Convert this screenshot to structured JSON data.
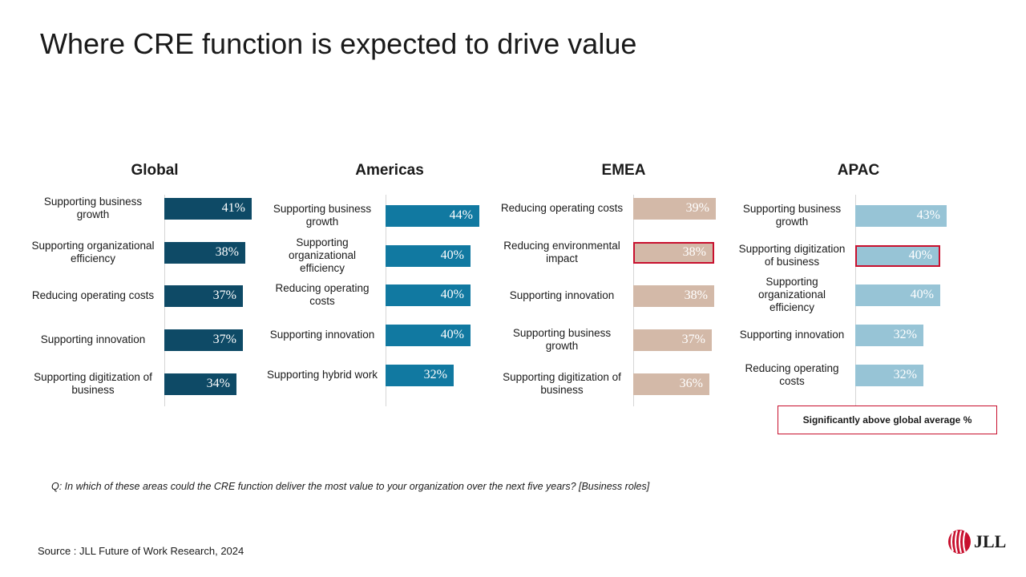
{
  "title": "Where CRE function is expected to drive value",
  "colors": {
    "global": "#0e4a66",
    "americas": "#1179a1",
    "emea": "#d3b9a8",
    "apac": "#97c4d6",
    "highlight": "#c8102e"
  },
  "chart_data": [
    {
      "type": "bar",
      "orientation": "horizontal",
      "title": "Global",
      "categories": [
        "Supporting business growth",
        "Supporting organizational efficiency",
        "Reducing operating costs",
        "Supporting innovation",
        "Supporting digitization of business"
      ],
      "values": [
        41,
        38,
        37,
        37,
        34
      ],
      "labels": [
        "41%",
        "38%",
        "37%",
        "37%",
        "34%"
      ],
      "highlighted": [
        false,
        false,
        false,
        false,
        false
      ]
    },
    {
      "type": "bar",
      "orientation": "horizontal",
      "title": "Americas",
      "categories": [
        "Supporting business growth",
        "Supporting organizational efficiency",
        "Reducing operating costs",
        "Supporting innovation",
        "Supporting hybrid work"
      ],
      "values": [
        44,
        40,
        40,
        40,
        32
      ],
      "labels": [
        "44%",
        "40%",
        "40%",
        "40%",
        "32%"
      ],
      "highlighted": [
        false,
        false,
        false,
        false,
        false
      ]
    },
    {
      "type": "bar",
      "orientation": "horizontal",
      "title": "EMEA",
      "categories": [
        "Reducing operating costs",
        "Reducing environmental impact",
        "Supporting innovation",
        "Supporting business growth",
        "Supporting digitization of business"
      ],
      "values": [
        39,
        38,
        38,
        37,
        36
      ],
      "labels": [
        "39%",
        "38%",
        "38%",
        "37%",
        "36%"
      ],
      "highlighted": [
        false,
        true,
        false,
        false,
        false
      ]
    },
    {
      "type": "bar",
      "orientation": "horizontal",
      "title": "APAC",
      "categories": [
        "Supporting business growth",
        "Supporting digitization of business",
        "Supporting organizational efficiency",
        "Supporting innovation",
        "Reducing operating costs"
      ],
      "values": [
        43,
        40,
        40,
        32,
        32
      ],
      "labels": [
        "43%",
        "40%",
        "40%",
        "32%",
        "32%"
      ],
      "highlighted": [
        false,
        true,
        false,
        false,
        false
      ]
    }
  ],
  "legend": "Significantly above global average %",
  "question": "Q: In which of these areas could the CRE function deliver the most value to your organization over the next five years? [Business roles]",
  "source": "Source : JLL Future of Work Research, 2024",
  "logo_text": "JLL"
}
